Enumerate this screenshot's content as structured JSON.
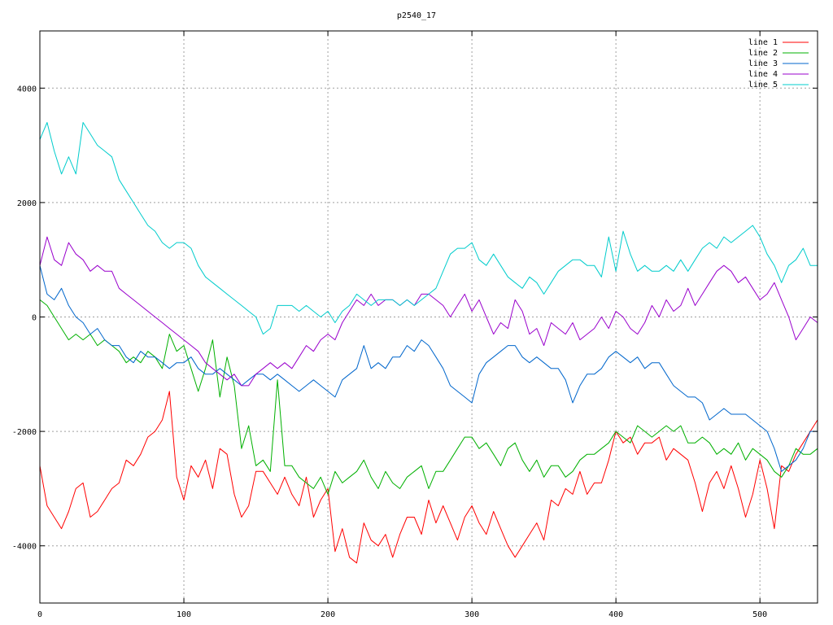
{
  "chart_data": {
    "type": "line",
    "title": "p2540_17",
    "xlabel": "",
    "ylabel": "",
    "xlim": [
      0,
      540
    ],
    "ylim": [
      -5000,
      5000
    ],
    "xticks": [
      0,
      100,
      200,
      300,
      400,
      500
    ],
    "yticks": [
      -4000,
      -2000,
      0,
      2000,
      4000
    ],
    "xtick_labels": [
      "0",
      "100",
      "200",
      "300",
      "400",
      "500"
    ],
    "ytick_labels": [
      "-4000",
      "-2000",
      "0",
      "2000",
      "4000"
    ],
    "grid": true,
    "legend_position": "top-right",
    "series": [
      {
        "name": "line 1",
        "color": "#ff0000",
        "x": [
          0,
          5,
          10,
          15,
          20,
          25,
          30,
          35,
          40,
          45,
          50,
          55,
          60,
          65,
          70,
          75,
          80,
          85,
          90,
          95,
          100,
          105,
          110,
          115,
          120,
          125,
          130,
          135,
          140,
          145,
          150,
          155,
          160,
          165,
          170,
          175,
          180,
          185,
          190,
          195,
          200,
          205,
          210,
          215,
          220,
          225,
          230,
          235,
          240,
          245,
          250,
          255,
          260,
          265,
          270,
          275,
          280,
          285,
          290,
          295,
          300,
          305,
          310,
          315,
          320,
          325,
          330,
          335,
          340,
          345,
          350,
          355,
          360,
          365,
          370,
          375,
          380,
          385,
          390,
          395,
          400,
          405,
          410,
          415,
          420,
          425,
          430,
          435,
          440,
          445,
          450,
          455,
          460,
          465,
          470,
          475,
          480,
          485,
          490,
          495,
          500,
          505,
          510,
          515,
          520,
          525,
          530,
          535,
          540
        ],
        "y": [
          -2600,
          -3300,
          -3500,
          -3700,
          -3400,
          -3000,
          -2900,
          -3500,
          -3400,
          -3200,
          -3000,
          -2900,
          -2500,
          -2600,
          -2400,
          -2100,
          -2000,
          -1800,
          -1300,
          -2800,
          -3200,
          -2600,
          -2800,
          -2500,
          -3000,
          -2300,
          -2400,
          -3100,
          -3500,
          -3300,
          -2700,
          -2700,
          -2900,
          -3100,
          -2800,
          -3100,
          -3300,
          -2800,
          -3500,
          -3200,
          -3000,
          -4100,
          -3700,
          -4200,
          -4300,
          -3600,
          -3900,
          -4000,
          -3800,
          -4200,
          -3800,
          -3500,
          -3500,
          -3800,
          -3200,
          -3600,
          -3300,
          -3600,
          -3900,
          -3500,
          -3300,
          -3600,
          -3800,
          -3400,
          -3700,
          -4000,
          -4200,
          -4000,
          -3800,
          -3600,
          -3900,
          -3200,
          -3300,
          -3000,
          -3100,
          -2700,
          -3100,
          -2900,
          -2900,
          -2500,
          -2000,
          -2200,
          -2100,
          -2400,
          -2200,
          -2200,
          -2100,
          -2500,
          -2300,
          -2400,
          -2500,
          -2900,
          -3400,
          -2900,
          -2700,
          -3000,
          -2600,
          -3000,
          -3500,
          -3100,
          -2500,
          -3000,
          -3700,
          -2600,
          -2700,
          -2400,
          -2200,
          -2000,
          -1800
        ]
      },
      {
        "name": "line 2",
        "color": "#00b000",
        "x": [
          0,
          5,
          10,
          15,
          20,
          25,
          30,
          35,
          40,
          45,
          50,
          55,
          60,
          65,
          70,
          75,
          80,
          85,
          90,
          95,
          100,
          105,
          110,
          115,
          120,
          125,
          130,
          135,
          140,
          145,
          150,
          155,
          160,
          165,
          170,
          175,
          180,
          185,
          190,
          195,
          200,
          205,
          210,
          215,
          220,
          225,
          230,
          235,
          240,
          245,
          250,
          255,
          260,
          265,
          270,
          275,
          280,
          285,
          290,
          295,
          300,
          305,
          310,
          315,
          320,
          325,
          330,
          335,
          340,
          345,
          350,
          355,
          360,
          365,
          370,
          375,
          380,
          385,
          390,
          395,
          400,
          405,
          410,
          415,
          420,
          425,
          430,
          435,
          440,
          445,
          450,
          455,
          460,
          465,
          470,
          475,
          480,
          485,
          490,
          495,
          500,
          505,
          510,
          515,
          520,
          525,
          530,
          535,
          540
        ],
        "y": [
          300,
          200,
          0,
          -200,
          -400,
          -300,
          -400,
          -300,
          -500,
          -400,
          -500,
          -600,
          -800,
          -700,
          -800,
          -600,
          -700,
          -900,
          -300,
          -600,
          -500,
          -900,
          -1300,
          -900,
          -400,
          -1400,
          -700,
          -1200,
          -2300,
          -1900,
          -2600,
          -2500,
          -2700,
          -1100,
          -2600,
          -2600,
          -2800,
          -2900,
          -3000,
          -2800,
          -3100,
          -2700,
          -2900,
          -2800,
          -2700,
          -2500,
          -2800,
          -3000,
          -2700,
          -2900,
          -3000,
          -2800,
          -2700,
          -2600,
          -3000,
          -2700,
          -2700,
          -2500,
          -2300,
          -2100,
          -2100,
          -2300,
          -2200,
          -2400,
          -2600,
          -2300,
          -2200,
          -2500,
          -2700,
          -2500,
          -2800,
          -2600,
          -2600,
          -2800,
          -2700,
          -2500,
          -2400,
          -2400,
          -2300,
          -2200,
          -2000,
          -2100,
          -2200,
          -1900,
          -2000,
          -2100,
          -2000,
          -1900,
          -2000,
          -1900,
          -2200,
          -2200,
          -2100,
          -2200,
          -2400,
          -2300,
          -2400,
          -2200,
          -2500,
          -2300,
          -2400,
          -2500,
          -2700,
          -2800,
          -2600,
          -2300,
          -2400,
          -2400,
          -2300
        ]
      },
      {
        "name": "line 3",
        "color": "#0066cc",
        "x": [
          0,
          5,
          10,
          15,
          20,
          25,
          30,
          35,
          40,
          45,
          50,
          55,
          60,
          65,
          70,
          75,
          80,
          85,
          90,
          95,
          100,
          105,
          110,
          115,
          120,
          125,
          130,
          135,
          140,
          145,
          150,
          155,
          160,
          165,
          170,
          175,
          180,
          185,
          190,
          195,
          200,
          205,
          210,
          215,
          220,
          225,
          230,
          235,
          240,
          245,
          250,
          255,
          260,
          265,
          270,
          275,
          280,
          285,
          290,
          295,
          300,
          305,
          310,
          315,
          320,
          325,
          330,
          335,
          340,
          345,
          350,
          355,
          360,
          365,
          370,
          375,
          380,
          385,
          390,
          395,
          400,
          405,
          410,
          415,
          420,
          425,
          430,
          435,
          440,
          445,
          450,
          455,
          460,
          465,
          470,
          475,
          480,
          485,
          490,
          495,
          500,
          505,
          510,
          515,
          520,
          525,
          530,
          535,
          540
        ],
        "y": [
          900,
          400,
          300,
          500,
          200,
          0,
          -100,
          -300,
          -200,
          -400,
          -500,
          -500,
          -700,
          -800,
          -600,
          -700,
          -700,
          -800,
          -900,
          -800,
          -800,
          -700,
          -900,
          -1000,
          -1000,
          -900,
          -1000,
          -1100,
          -1200,
          -1100,
          -1000,
          -1000,
          -1100,
          -1000,
          -1100,
          -1200,
          -1300,
          -1200,
          -1100,
          -1200,
          -1300,
          -1400,
          -1100,
          -1000,
          -900,
          -500,
          -900,
          -800,
          -900,
          -700,
          -700,
          -500,
          -600,
          -400,
          -500,
          -700,
          -900,
          -1200,
          -1300,
          -1400,
          -1500,
          -1000,
          -800,
          -700,
          -600,
          -500,
          -500,
          -700,
          -800,
          -700,
          -800,
          -900,
          -900,
          -1100,
          -1500,
          -1200,
          -1000,
          -1000,
          -900,
          -700,
          -600,
          -700,
          -800,
          -700,
          -900,
          -800,
          -800,
          -1000,
          -1200,
          -1300,
          -1400,
          -1400,
          -1500,
          -1800,
          -1700,
          -1600,
          -1700,
          -1700,
          -1700,
          -1800,
          -1900,
          -2000,
          -2300,
          -2700,
          -2600,
          -2500,
          -2300,
          -2000,
          -2000
        ]
      },
      {
        "name": "line 4",
        "color": "#9900cc",
        "x": [
          0,
          5,
          10,
          15,
          20,
          25,
          30,
          35,
          40,
          45,
          50,
          55,
          60,
          65,
          70,
          75,
          80,
          85,
          90,
          95,
          100,
          105,
          110,
          115,
          120,
          125,
          130,
          135,
          140,
          145,
          150,
          155,
          160,
          165,
          170,
          175,
          180,
          185,
          190,
          195,
          200,
          205,
          210,
          215,
          220,
          225,
          230,
          235,
          240,
          245,
          250,
          255,
          260,
          265,
          270,
          275,
          280,
          285,
          290,
          295,
          300,
          305,
          310,
          315,
          320,
          325,
          330,
          335,
          340,
          345,
          350,
          355,
          360,
          365,
          370,
          375,
          380,
          385,
          390,
          395,
          400,
          405,
          410,
          415,
          420,
          425,
          430,
          435,
          440,
          445,
          450,
          455,
          460,
          465,
          470,
          475,
          480,
          485,
          490,
          495,
          500,
          505,
          510,
          515,
          520,
          525,
          530,
          535,
          540
        ],
        "y": [
          900,
          1400,
          1000,
          900,
          1300,
          1100,
          1000,
          800,
          900,
          800,
          800,
          500,
          400,
          300,
          200,
          100,
          0,
          -100,
          -200,
          -300,
          -400,
          -500,
          -600,
          -800,
          -900,
          -1000,
          -1100,
          -1000,
          -1200,
          -1200,
          -1000,
          -900,
          -800,
          -900,
          -800,
          -900,
          -700,
          -500,
          -600,
          -400,
          -300,
          -400,
          -100,
          100,
          300,
          200,
          400,
          200,
          300,
          300,
          200,
          300,
          200,
          400,
          400,
          300,
          200,
          0,
          200,
          400,
          100,
          300,
          0,
          -300,
          -100,
          -200,
          300,
          100,
          -300,
          -200,
          -500,
          -100,
          -200,
          -300,
          -100,
          -400,
          -300,
          -200,
          0,
          -200,
          100,
          0,
          -200,
          -300,
          -100,
          200,
          0,
          300,
          100,
          200,
          500,
          200,
          400,
          600,
          800,
          900,
          800,
          600,
          700,
          500,
          300,
          400,
          600,
          300,
          0,
          -400,
          -200,
          0,
          -100
        ]
      },
      {
        "name": "line 5",
        "color": "#00cccc",
        "x": [
          0,
          5,
          10,
          15,
          20,
          25,
          30,
          35,
          40,
          45,
          50,
          55,
          60,
          65,
          70,
          75,
          80,
          85,
          90,
          95,
          100,
          105,
          110,
          115,
          120,
          125,
          130,
          135,
          140,
          145,
          150,
          155,
          160,
          165,
          170,
          175,
          180,
          185,
          190,
          195,
          200,
          205,
          210,
          215,
          220,
          225,
          230,
          235,
          240,
          245,
          250,
          255,
          260,
          265,
          270,
          275,
          280,
          285,
          290,
          295,
          300,
          305,
          310,
          315,
          320,
          325,
          330,
          335,
          340,
          345,
          350,
          355,
          360,
          365,
          370,
          375,
          380,
          385,
          390,
          395,
          400,
          405,
          410,
          415,
          420,
          425,
          430,
          435,
          440,
          445,
          450,
          455,
          460,
          465,
          470,
          475,
          480,
          485,
          490,
          495,
          500,
          505,
          510,
          515,
          520,
          525,
          530,
          535,
          540
        ],
        "y": [
          3100,
          3400,
          2900,
          2500,
          2800,
          2500,
          3400,
          3200,
          3000,
          2900,
          2800,
          2400,
          2200,
          2000,
          1800,
          1600,
          1500,
          1300,
          1200,
          1300,
          1300,
          1200,
          900,
          700,
          600,
          500,
          400,
          300,
          200,
          100,
          0,
          -300,
          -200,
          200,
          200,
          200,
          100,
          200,
          100,
          0,
          100,
          -100,
          100,
          200,
          400,
          300,
          200,
          300,
          300,
          300,
          200,
          300,
          200,
          300,
          400,
          500,
          800,
          1100,
          1200,
          1200,
          1300,
          1000,
          900,
          1100,
          900,
          700,
          600,
          500,
          700,
          600,
          400,
          600,
          800,
          900,
          1000,
          1000,
          900,
          900,
          700,
          1400,
          800,
          1500,
          1100,
          800,
          900,
          800,
          800,
          900,
          800,
          1000,
          800,
          1000,
          1200,
          1300,
          1200,
          1400,
          1300,
          1400,
          1500,
          1600,
          1400,
          1100,
          900,
          600,
          900,
          1000,
          1200,
          900,
          900
        ]
      }
    ]
  }
}
